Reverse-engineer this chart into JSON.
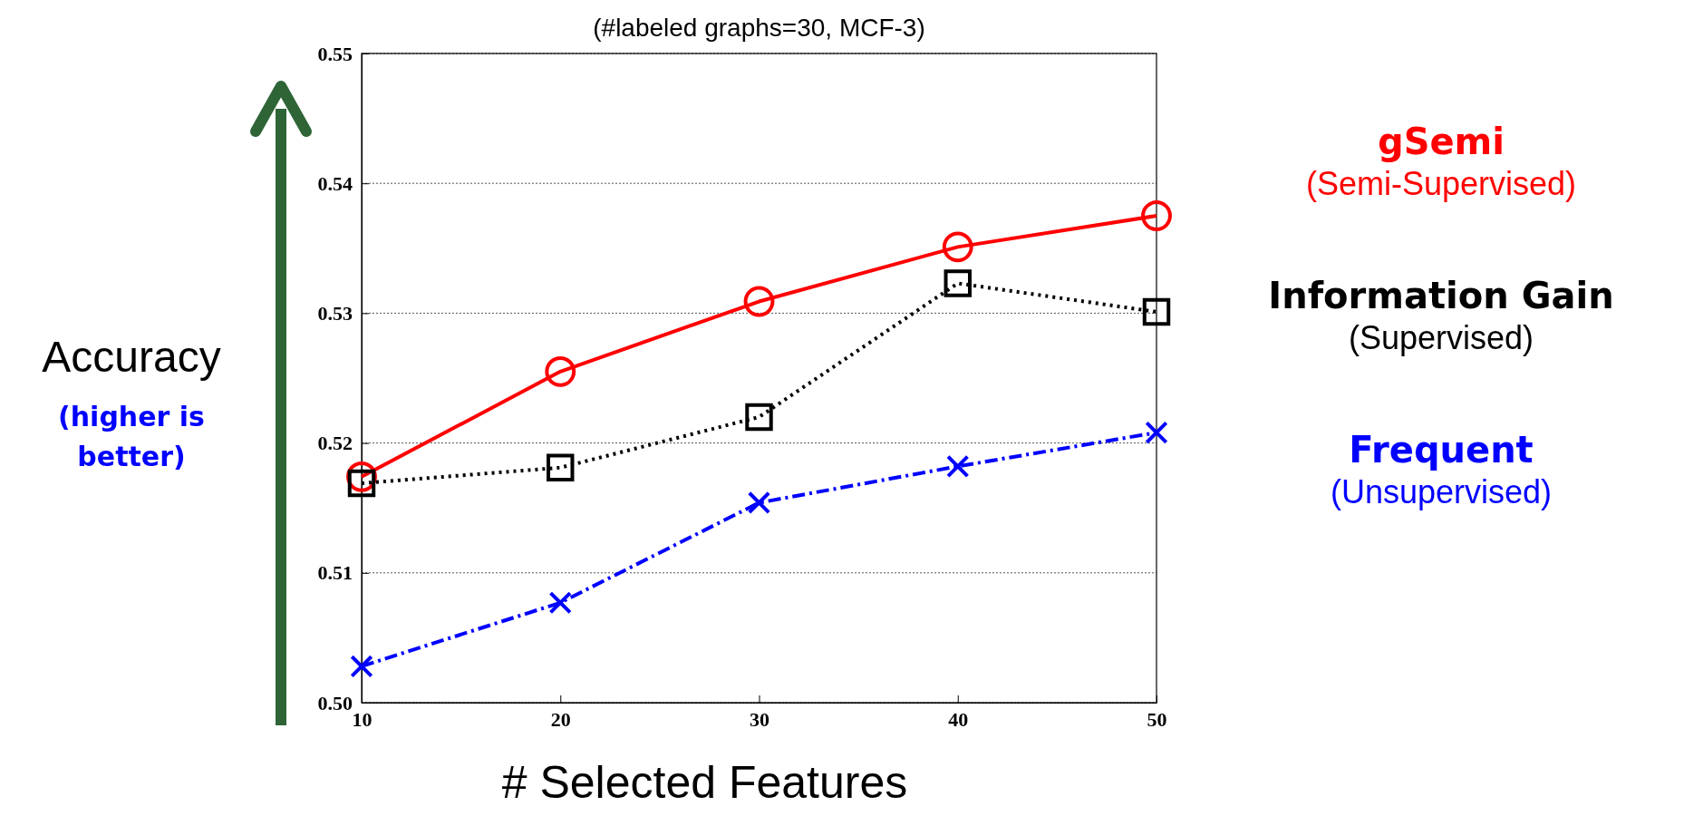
{
  "chart_data": {
    "type": "line",
    "title": "(#labeled graphs=30, MCF-3)",
    "xlabel": "# Selected Features",
    "ylabel": "Accuracy",
    "x": [
      10,
      20,
      30,
      40,
      50
    ],
    "xlim": [
      10,
      50
    ],
    "xticks": [
      10,
      20,
      30,
      40,
      50
    ],
    "ylim": [
      0.5,
      0.55
    ],
    "yticks": [
      {
        "value": 0.5,
        "label": "0.50"
      },
      {
        "value": 0.51,
        "label": "0.51"
      },
      {
        "value": 0.52,
        "label": "0.52"
      },
      {
        "value": 0.53,
        "label": "0.53"
      },
      {
        "value": 0.54,
        "label": "0.54"
      },
      {
        "value": 0.55,
        "label": "0.55"
      }
    ],
    "grid": "y",
    "series": [
      {
        "name": "gSemi",
        "color": "#ff0000",
        "marker": "circle",
        "line_style": "solid",
        "values": [
          0.5174,
          0.5255,
          0.5309,
          0.5351,
          0.5375
        ]
      },
      {
        "name": "Information Gain",
        "color": "#000000",
        "marker": "square",
        "line_style": "dotted",
        "values": [
          0.5169,
          0.5181,
          0.522,
          0.5323,
          0.5301
        ]
      },
      {
        "name": "Frequent",
        "color": "#0000ff",
        "marker": "cross",
        "line_style": "dashed",
        "values": [
          0.5028,
          0.5077,
          0.5154,
          0.5182,
          0.5208
        ]
      }
    ],
    "annotations": [
      "(Semi-Supervised)",
      "(Supervised)",
      "(Unsupervised)",
      "(higher is better)"
    ]
  }
}
